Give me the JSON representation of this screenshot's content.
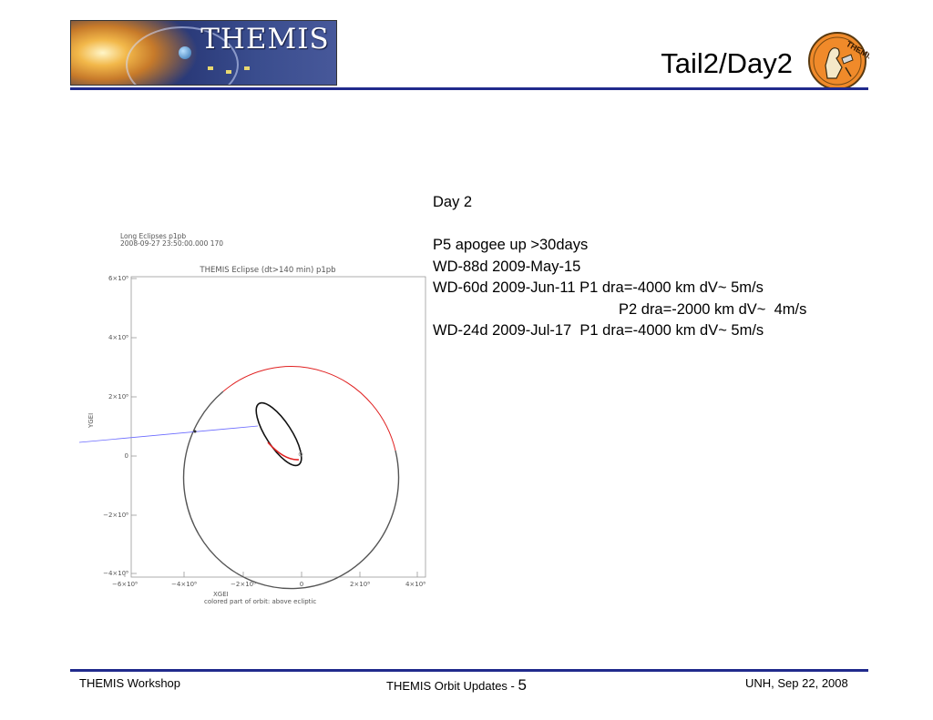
{
  "header": {
    "banner_title": "THEMIS",
    "slide_title": "Tail2/Day2",
    "logo_text": "THEMIS"
  },
  "body": {
    "lines": [
      "Day 2",
      "",
      "P5 apogee up >30days",
      "WD-88d 2009-May-15",
      "WD-60d 2009-Jun-11 P1 dra=-4000 km dV~ 5m/s",
      "P2 dra=-2000 km dV~  4m/s",
      "WD-24d 2009-Jul-17  P1 dra=-4000 km dV~ 5m/s"
    ]
  },
  "figure": {
    "header_line1": "Long Eclipses p1pb",
    "header_line2": "2008-09-27 23:50:00.000 170",
    "title": "THEMIS Eclipse (dt>140 min) p1pb",
    "xlabel": "XGEI",
    "ylabel": "YGEI",
    "caption": "colored part of orbit: above ecliptic",
    "y_ticks": [
      "6×10⁸",
      "4×10⁸",
      "2×10⁸",
      "0",
      "−2×10⁸",
      "−4×10⁸"
    ],
    "x_ticks": [
      "−6×10⁸",
      "−4×10⁸",
      "−2×10⁸",
      "0",
      "2×10⁸",
      "4×10⁸"
    ],
    "colors": {
      "above_ecliptic": "#e02020",
      "orbit": "#555555",
      "sun_line": "#6a6aff",
      "inner_orbit": "#111111"
    }
  },
  "footer": {
    "left": "THEMIS Workshop",
    "center": "THEMIS Orbit Updates - ",
    "page_number": "5",
    "right": "UNH, Sep 22, 2008"
  }
}
